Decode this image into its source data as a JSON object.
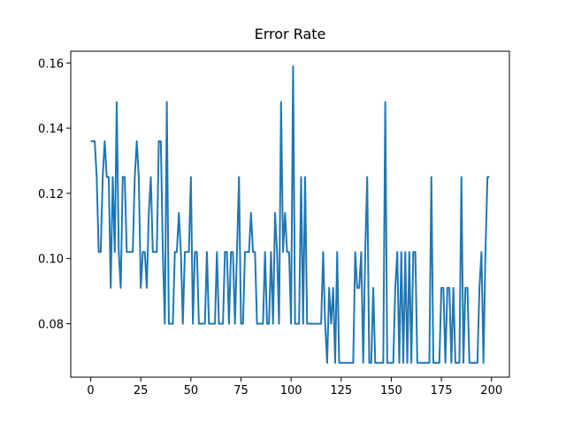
{
  "chart_data": {
    "type": "line",
    "title": "Error Rate",
    "color": "#1f77b4",
    "x": [
      0,
      1,
      2,
      3,
      4,
      5,
      6,
      7,
      8,
      9,
      10,
      11,
      12,
      13,
      14,
      15,
      16,
      17,
      18,
      19,
      20,
      21,
      22,
      23,
      24,
      25,
      26,
      27,
      28,
      29,
      30,
      31,
      32,
      33,
      34,
      35,
      36,
      37,
      38,
      39,
      40,
      41,
      42,
      43,
      44,
      45,
      46,
      47,
      48,
      49,
      50,
      51,
      52,
      53,
      54,
      55,
      56,
      57,
      58,
      59,
      60,
      61,
      62,
      63,
      64,
      65,
      66,
      67,
      68,
      69,
      70,
      71,
      72,
      73,
      74,
      75,
      76,
      77,
      78,
      79,
      80,
      81,
      82,
      83,
      84,
      85,
      86,
      87,
      88,
      89,
      90,
      91,
      92,
      93,
      94,
      95,
      96,
      97,
      98,
      99,
      100,
      101,
      102,
      103,
      104,
      105,
      106,
      107,
      108,
      109,
      110,
      111,
      112,
      113,
      114,
      115,
      116,
      117,
      118,
      119,
      120,
      121,
      122,
      123,
      124,
      125,
      126,
      127,
      128,
      129,
      130,
      131,
      132,
      133,
      134,
      135,
      136,
      137,
      138,
      139,
      140,
      141,
      142,
      143,
      144,
      145,
      146,
      147,
      148,
      149,
      150,
      151,
      152,
      153,
      154,
      155,
      156,
      157,
      158,
      159,
      160,
      161,
      162,
      163,
      164,
      165,
      166,
      167,
      168,
      169,
      170,
      171,
      172,
      173,
      174,
      175,
      176,
      177,
      178,
      179,
      180,
      181,
      182,
      183,
      184,
      185,
      186,
      187,
      188,
      189,
      190,
      191,
      192,
      193,
      194,
      195,
      196,
      197,
      198,
      199
    ],
    "values": [
      0.136,
      0.136,
      0.136,
      0.125,
      0.102,
      0.102,
      0.125,
      0.136,
      0.125,
      0.125,
      0.091,
      0.125,
      0.102,
      0.148,
      0.102,
      0.091,
      0.125,
      0.125,
      0.102,
      0.102,
      0.102,
      0.102,
      0.125,
      0.136,
      0.125,
      0.091,
      0.102,
      0.102,
      0.091,
      0.114,
      0.125,
      0.102,
      0.102,
      0.102,
      0.136,
      0.136,
      0.102,
      0.08,
      0.148,
      0.08,
      0.08,
      0.08,
      0.102,
      0.102,
      0.114,
      0.102,
      0.08,
      0.102,
      0.102,
      0.102,
      0.125,
      0.08,
      0.102,
      0.102,
      0.08,
      0.08,
      0.08,
      0.08,
      0.102,
      0.08,
      0.08,
      0.08,
      0.08,
      0.102,
      0.08,
      0.08,
      0.08,
      0.102,
      0.102,
      0.08,
      0.102,
      0.102,
      0.08,
      0.102,
      0.125,
      0.08,
      0.08,
      0.102,
      0.102,
      0.102,
      0.114,
      0.102,
      0.102,
      0.08,
      0.08,
      0.08,
      0.08,
      0.102,
      0.08,
      0.08,
      0.102,
      0.08,
      0.114,
      0.102,
      0.08,
      0.148,
      0.102,
      0.114,
      0.102,
      0.102,
      0.08,
      0.159,
      0.08,
      0.08,
      0.08,
      0.125,
      0.08,
      0.125,
      0.08,
      0.08,
      0.08,
      0.08,
      0.08,
      0.08,
      0.08,
      0.08,
      0.102,
      0.08,
      0.068,
      0.091,
      0.08,
      0.091,
      0.068,
      0.102,
      0.068,
      0.068,
      0.068,
      0.068,
      0.068,
      0.068,
      0.068,
      0.068,
      0.102,
      0.091,
      0.091,
      0.102,
      0.068,
      0.102,
      0.125,
      0.068,
      0.068,
      0.091,
      0.068,
      0.068,
      0.068,
      0.068,
      0.068,
      0.148,
      0.068,
      0.068,
      0.068,
      0.068,
      0.091,
      0.102,
      0.068,
      0.102,
      0.068,
      0.102,
      0.068,
      0.102,
      0.068,
      0.102,
      0.102,
      0.068,
      0.068,
      0.068,
      0.068,
      0.068,
      0.068,
      0.068,
      0.125,
      0.068,
      0.068,
      0.068,
      0.068,
      0.091,
      0.091,
      0.068,
      0.091,
      0.091,
      0.068,
      0.091,
      0.068,
      0.068,
      0.068,
      0.125,
      0.068,
      0.091,
      0.091,
      0.068,
      0.068,
      0.068,
      0.068,
      0.068,
      0.091,
      0.102,
      0.068,
      0.102,
      0.125,
      0.125
    ],
    "xlim": [
      -9.95,
      208.95
    ],
    "xticks": [
      0,
      25,
      50,
      75,
      100,
      125,
      150,
      175,
      200
    ],
    "ylim": [
      0.0636,
      0.1636
    ],
    "yticks": [
      0.08,
      {
        "value": 0.1,
        "label": "0.10"
      },
      0.12,
      0.14,
      0.16
    ]
  }
}
